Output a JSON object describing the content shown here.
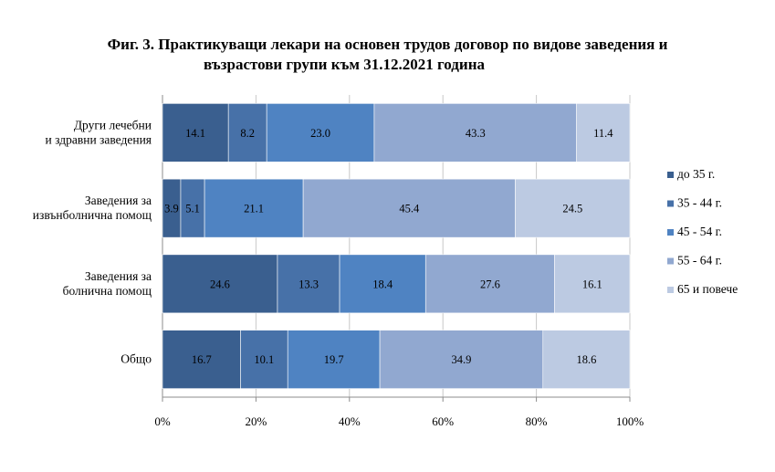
{
  "title_line1": "Фиг. 3. Практикуващи лекари на основен трудов договор по видове заведения и",
  "title_line2": "възрастови групи към 31.12.2021 година",
  "chart_data": {
    "type": "bar",
    "orientation": "horizontal",
    "stacked": "percent",
    "categories": [
      [
        "Други лечебни",
        "и здравни заведения"
      ],
      [
        "Заведения за",
        "извънболнична помощ"
      ],
      [
        "Заведения за",
        "болнична помощ"
      ],
      [
        "Общо"
      ]
    ],
    "series": [
      {
        "name": "до 35 г.",
        "color": "#3a5f8f",
        "values": [
          14.1,
          3.9,
          24.6,
          16.7
        ]
      },
      {
        "name": "35 - 44 г.",
        "color": "#4771a8",
        "values": [
          8.2,
          5.1,
          13.3,
          10.1
        ]
      },
      {
        "name": "45 - 54 г.",
        "color": "#4f83c2",
        "values": [
          23.0,
          21.1,
          18.4,
          19.7
        ]
      },
      {
        "name": "55 - 64 г.",
        "color": "#91a8d0",
        "values": [
          43.3,
          45.4,
          27.6,
          34.9
        ]
      },
      {
        "name": "65 и повече",
        "color": "#bccae2",
        "values": [
          11.4,
          24.5,
          16.1,
          18.6
        ]
      }
    ],
    "xlim": [
      0,
      100
    ],
    "xticks": [
      "0%",
      "20%",
      "40%",
      "60%",
      "80%",
      "100%"
    ],
    "legend": "right",
    "grid": true
  }
}
